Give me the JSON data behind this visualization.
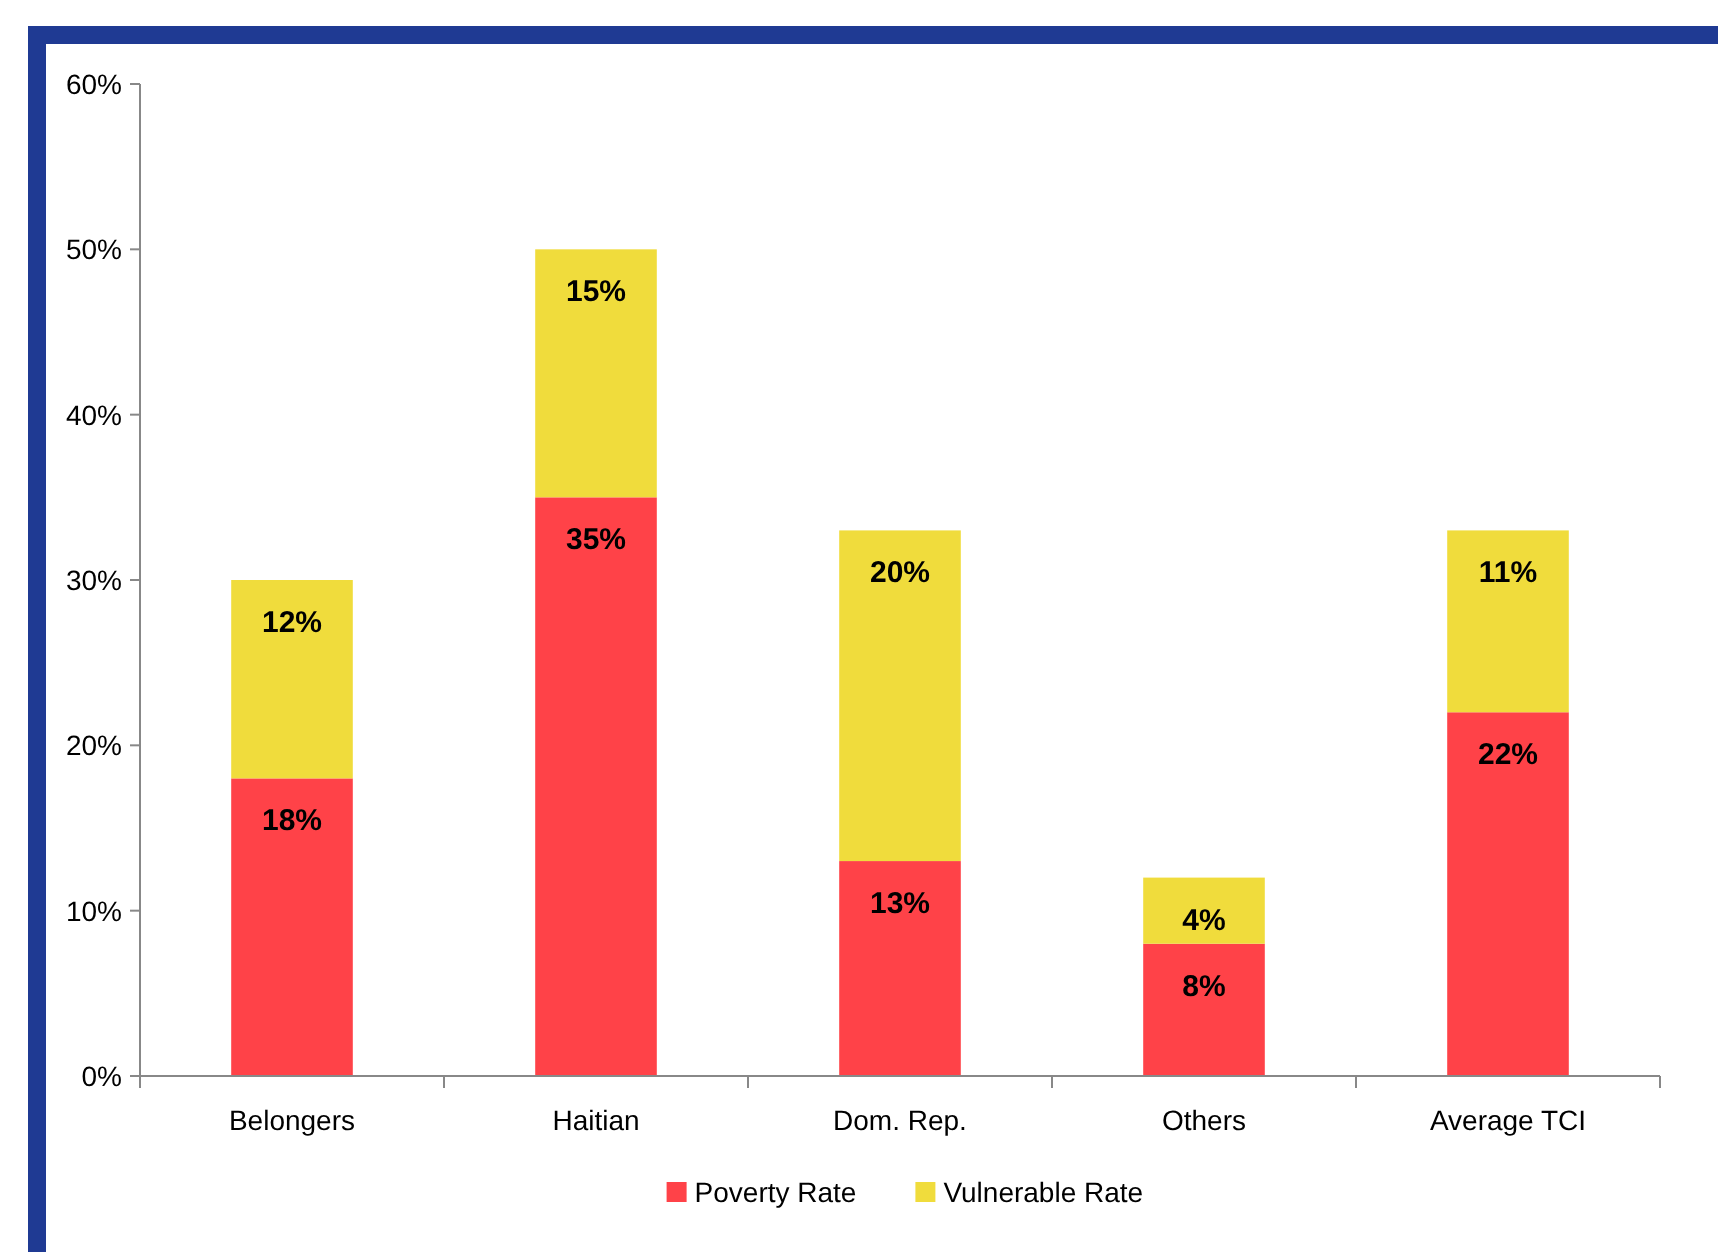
{
  "chart_data": {
    "type": "bar",
    "stacked": true,
    "categories": [
      "Belongers",
      "Haitian",
      "Dom. Rep.",
      "Others",
      "Average TCI"
    ],
    "series": [
      {
        "name": "Poverty Rate",
        "color": "#ff4248",
        "values": [
          18,
          35,
          13,
          8,
          22
        ],
        "value_labels": [
          "18%",
          "35%",
          "13%",
          "8%",
          "22%"
        ]
      },
      {
        "name": "Vulnerable Rate",
        "color": "#f0dc3c",
        "values": [
          12,
          15,
          20,
          4,
          11
        ],
        "value_labels": [
          "12%",
          "15%",
          "20%",
          "4%",
          "11%"
        ]
      }
    ],
    "ylim": [
      0,
      60
    ],
    "yticks": [
      {
        "value": 0,
        "label": "0%"
      },
      {
        "value": 10,
        "label": "10%"
      },
      {
        "value": 20,
        "label": "20%"
      },
      {
        "value": 30,
        "label": "30%"
      },
      {
        "value": 40,
        "label": "40%"
      },
      {
        "value": 50,
        "label": "50%"
      },
      {
        "value": 60,
        "label": "60%"
      }
    ],
    "legend": "bottom",
    "grid": false
  }
}
